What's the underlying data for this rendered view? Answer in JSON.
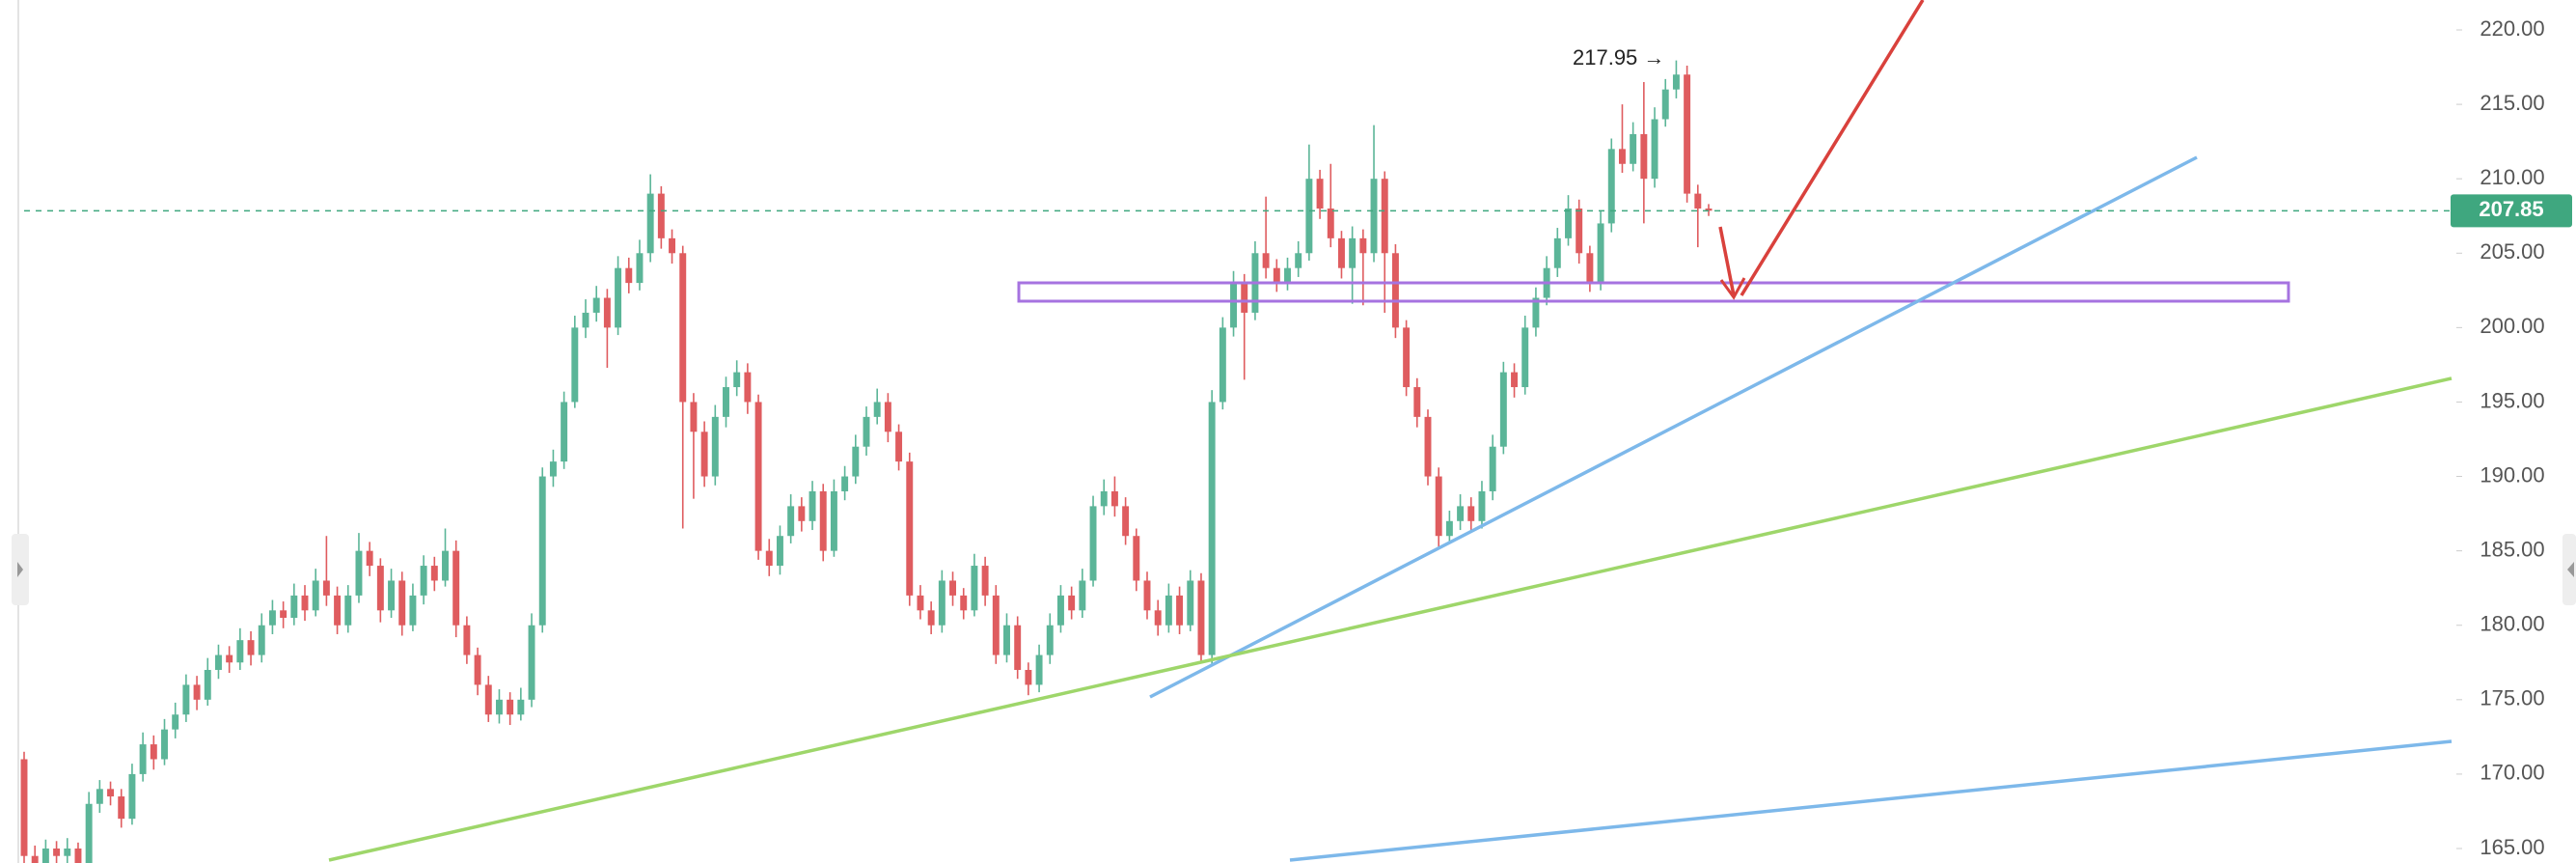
{
  "chart_data": {
    "type": "candlestick",
    "up_color": "#5bb598",
    "down_color": "#df5c5f",
    "grid": false,
    "ylim": [
      165,
      220
    ],
    "yticks": [
      {
        "value": 165,
        "label": "165.00"
      },
      {
        "value": 170,
        "label": "170.00"
      },
      {
        "value": 175,
        "label": "175.00"
      },
      {
        "value": 180,
        "label": "180.00"
      },
      {
        "value": 185,
        "label": "185.00"
      },
      {
        "value": 190,
        "label": "190.00"
      },
      {
        "value": 195,
        "label": "195.00"
      },
      {
        "value": 200,
        "label": "200.00"
      },
      {
        "value": 205,
        "label": "205.00"
      },
      {
        "value": 210,
        "label": "210.00"
      },
      {
        "value": 215,
        "label": "215.00"
      },
      {
        "value": 220,
        "label": "220.00"
      }
    ],
    "last_price": 207.85,
    "last_price_color": "#3fa77f",
    "annotation": "217.95 →",
    "candles": [
      [
        171,
        171.5,
        163.5,
        164.5
      ],
      [
        164.5,
        165.2,
        163.4,
        164
      ],
      [
        164,
        165.6,
        163.6,
        165
      ],
      [
        165,
        165.5,
        163.9,
        164.5
      ],
      [
        164.5,
        165.7,
        164,
        165
      ],
      [
        165,
        165.4,
        163.5,
        164
      ],
      [
        164,
        168.8,
        163.8,
        168
      ],
      [
        168,
        169.6,
        167.4,
        169
      ],
      [
        169,
        169.5,
        167.9,
        168.5
      ],
      [
        168.5,
        169,
        166.4,
        167
      ],
      [
        167,
        170.7,
        166.6,
        170
      ],
      [
        170,
        172.8,
        169.5,
        172
      ],
      [
        172,
        172.6,
        170.3,
        171
      ],
      [
        171,
        173.7,
        170.6,
        173
      ],
      [
        173,
        174.8,
        172.4,
        174
      ],
      [
        174,
        176.7,
        173.5,
        176
      ],
      [
        176,
        176.6,
        174.3,
        175
      ],
      [
        175,
        177.8,
        174.6,
        177
      ],
      [
        177,
        178.7,
        176.4,
        178
      ],
      [
        178,
        178.6,
        176.8,
        177.5
      ],
      [
        177.5,
        179.8,
        177,
        179
      ],
      [
        179,
        179.6,
        177.3,
        178
      ],
      [
        178,
        180.8,
        177.5,
        180
      ],
      [
        180,
        181.7,
        179.4,
        181
      ],
      [
        181,
        181.6,
        179.8,
        180.5
      ],
      [
        180.5,
        182.8,
        180,
        182
      ],
      [
        182,
        182.7,
        180.3,
        181
      ],
      [
        181,
        183.8,
        180.6,
        183
      ],
      [
        183,
        186,
        181.3,
        182
      ],
      [
        182,
        182.6,
        179.4,
        180
      ],
      [
        180,
        182.7,
        179.5,
        182
      ],
      [
        182,
        186.2,
        181.5,
        185
      ],
      [
        185,
        185.6,
        183.3,
        184
      ],
      [
        184,
        184.5,
        180.2,
        181
      ],
      [
        181,
        183.8,
        180.5,
        183
      ],
      [
        183,
        183.6,
        179.3,
        180
      ],
      [
        180,
        182.8,
        179.6,
        182
      ],
      [
        182,
        184.7,
        181.4,
        184
      ],
      [
        184,
        184.6,
        182.3,
        183
      ],
      [
        183,
        186.5,
        182.6,
        185
      ],
      [
        185,
        185.7,
        179.2,
        180
      ],
      [
        180,
        180.6,
        177.4,
        178
      ],
      [
        178,
        178.5,
        175.3,
        176
      ],
      [
        176,
        176.6,
        173.5,
        174
      ],
      [
        174,
        175.7,
        173.4,
        175
      ],
      [
        175,
        175.5,
        173.3,
        174
      ],
      [
        174,
        175.8,
        173.6,
        175
      ],
      [
        175,
        180.8,
        174.5,
        180
      ],
      [
        180,
        190.6,
        179.5,
        190
      ],
      [
        190,
        191.8,
        189.3,
        191
      ],
      [
        191,
        195.7,
        190.5,
        195
      ],
      [
        195,
        200.8,
        194.6,
        200
      ],
      [
        200,
        201.9,
        199.3,
        201
      ],
      [
        201,
        202.8,
        200.4,
        202
      ],
      [
        202,
        202.6,
        197.3,
        200
      ],
      [
        200,
        204.8,
        199.5,
        204
      ],
      [
        204,
        204.7,
        202.3,
        203
      ],
      [
        203,
        205.9,
        202.5,
        205
      ],
      [
        205,
        210.3,
        204.4,
        209
      ],
      [
        209,
        209.5,
        205.3,
        206
      ],
      [
        206,
        206.6,
        204.3,
        205
      ],
      [
        205,
        205.5,
        186.5,
        195
      ],
      [
        195,
        195.6,
        188.5,
        193
      ],
      [
        193,
        193.7,
        189.3,
        190
      ],
      [
        190,
        194.8,
        189.4,
        194
      ],
      [
        194,
        196.7,
        193.3,
        196
      ],
      [
        196,
        197.8,
        195.4,
        197
      ],
      [
        197,
        197.6,
        194.2,
        195
      ],
      [
        195,
        195.5,
        184.4,
        185
      ],
      [
        185,
        185.8,
        183.3,
        184
      ],
      [
        184,
        186.7,
        183.4,
        186
      ],
      [
        186,
        188.8,
        185.5,
        188
      ],
      [
        188,
        188.6,
        186.3,
        187
      ],
      [
        187,
        189.7,
        186.4,
        189
      ],
      [
        189,
        189.5,
        184.3,
        185
      ],
      [
        185,
        189.8,
        184.6,
        189
      ],
      [
        189,
        190.7,
        188.4,
        190
      ],
      [
        190,
        192.8,
        189.5,
        192
      ],
      [
        192,
        194.7,
        191.4,
        194
      ],
      [
        194,
        195.9,
        193.5,
        195
      ],
      [
        195,
        195.6,
        192.3,
        193
      ],
      [
        193,
        193.5,
        190.4,
        191
      ],
      [
        191,
        191.6,
        181.3,
        182
      ],
      [
        182,
        182.7,
        180.4,
        181
      ],
      [
        181,
        181.6,
        179.4,
        180
      ],
      [
        180,
        183.7,
        179.5,
        183
      ],
      [
        183,
        183.6,
        181.3,
        182
      ],
      [
        182,
        182.5,
        180.4,
        181
      ],
      [
        181,
        184.8,
        180.6,
        184
      ],
      [
        184,
        184.6,
        181.3,
        182
      ],
      [
        182,
        182.7,
        177.4,
        178
      ],
      [
        178,
        180.8,
        177.5,
        180
      ],
      [
        180,
        180.6,
        176.4,
        177
      ],
      [
        177,
        177.5,
        175.3,
        176
      ],
      [
        176,
        178.7,
        175.5,
        178
      ],
      [
        178,
        180.8,
        177.4,
        180
      ],
      [
        180,
        182.7,
        179.5,
        182
      ],
      [
        182,
        182.6,
        180.4,
        181
      ],
      [
        181,
        183.8,
        180.5,
        183
      ],
      [
        183,
        188.7,
        182.6,
        188
      ],
      [
        188,
        189.8,
        187.4,
        189
      ],
      [
        189,
        190,
        187.3,
        188
      ],
      [
        188,
        188.6,
        185.4,
        186
      ],
      [
        186,
        186.5,
        182.3,
        183
      ],
      [
        183,
        183.6,
        180.4,
        181
      ],
      [
        181,
        181.7,
        179.3,
        180
      ],
      [
        180,
        182.8,
        179.5,
        182
      ],
      [
        182,
        182.6,
        179.4,
        180
      ],
      [
        180,
        183.7,
        179.6,
        183
      ],
      [
        183,
        183.5,
        177.6,
        178
      ],
      [
        178,
        195.8,
        177.4,
        195
      ],
      [
        195,
        200.7,
        194.5,
        200
      ],
      [
        200,
        203.8,
        199.4,
        203
      ],
      [
        203,
        203.6,
        196.5,
        201
      ],
      [
        201,
        205.8,
        200.5,
        205
      ],
      [
        205,
        208.8,
        203.3,
        204
      ],
      [
        204,
        204.6,
        202.4,
        203
      ],
      [
        203,
        204.7,
        202.5,
        204
      ],
      [
        204,
        205.8,
        203.4,
        205
      ],
      [
        205,
        212.3,
        204.5,
        210
      ],
      [
        210,
        210.6,
        207.3,
        208
      ],
      [
        208,
        211,
        205.4,
        206
      ],
      [
        206,
        206.5,
        203.3,
        204
      ],
      [
        204,
        206.8,
        201.6,
        206
      ],
      [
        206,
        206.6,
        201.5,
        205
      ],
      [
        205,
        213.6,
        204.4,
        210
      ],
      [
        210,
        210.5,
        201,
        205
      ],
      [
        205,
        205.6,
        199.3,
        200
      ],
      [
        200,
        200.5,
        195.4,
        196
      ],
      [
        196,
        196.6,
        193.3,
        194
      ],
      [
        194,
        194.5,
        189.4,
        190
      ],
      [
        190,
        190.6,
        185.2,
        186
      ],
      [
        186,
        187.7,
        185.5,
        187
      ],
      [
        187,
        188.8,
        186.4,
        188
      ],
      [
        188,
        188.6,
        186.3,
        187
      ],
      [
        187,
        189.7,
        186.5,
        189
      ],
      [
        189,
        192.8,
        188.4,
        192
      ],
      [
        192,
        197.7,
        191.5,
        197
      ],
      [
        197,
        197.6,
        195.3,
        196
      ],
      [
        196,
        200.8,
        195.5,
        200
      ],
      [
        200,
        202.7,
        199.4,
        202
      ],
      [
        202,
        204.8,
        201.5,
        204
      ],
      [
        204,
        206.7,
        203.4,
        206
      ],
      [
        206,
        208.9,
        205.5,
        208
      ],
      [
        208,
        208.6,
        204.3,
        205
      ],
      [
        205,
        205.5,
        202.4,
        203
      ],
      [
        203,
        207.8,
        202.5,
        207
      ],
      [
        207,
        212.7,
        206.4,
        212
      ],
      [
        212,
        215,
        210.4,
        211
      ],
      [
        211,
        213.8,
        210.5,
        213
      ],
      [
        213,
        216.5,
        207,
        210
      ],
      [
        210,
        214.8,
        209.4,
        214
      ],
      [
        214,
        216.7,
        213.5,
        216
      ],
      [
        216,
        217.95,
        215.4,
        217
      ],
      [
        217,
        217.6,
        208.4,
        209
      ],
      [
        209,
        209.6,
        205.4,
        208
      ],
      [
        208,
        208.3,
        207.5,
        207.85
      ]
    ]
  }
}
